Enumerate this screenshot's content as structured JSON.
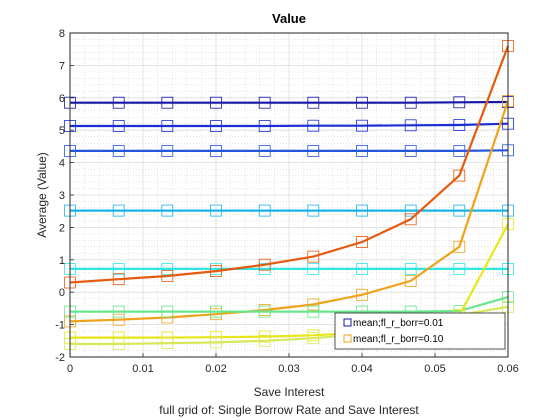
{
  "chart_data": {
    "type": "line",
    "title": "Value",
    "xlabel": "Save Interest",
    "ylabel": "Average (Value)",
    "caption": "full grid of: Single Borrow Rate and Save Interest",
    "xlim": [
      0,
      0.06
    ],
    "ylim": [
      -2,
      8
    ],
    "xticks": [
      "0",
      "0.01",
      "0.02",
      "0.03",
      "0.04",
      "0.05",
      "0.06"
    ],
    "yticks": [
      "-2",
      "-1",
      "0",
      "1",
      "2",
      "3",
      "4",
      "5",
      "6",
      "7",
      "8"
    ],
    "grid": true,
    "minor_grid": true,
    "legend_position": "bottom-right",
    "x": [
      0,
      0.00667,
      0.01333,
      0.02,
      0.02667,
      0.03333,
      0.04,
      0.04667,
      0.05333,
      0.06
    ],
    "series": [
      {
        "name": "",
        "color": "#1616a6",
        "values": [
          5.85,
          5.85,
          5.85,
          5.85,
          5.85,
          5.85,
          5.85,
          5.85,
          5.86,
          5.87
        ]
      },
      {
        "name": "",
        "color": "#1a2ed4",
        "values": [
          5.13,
          5.13,
          5.13,
          5.13,
          5.13,
          5.14,
          5.14,
          5.15,
          5.16,
          5.2
        ]
      },
      {
        "name": "",
        "color": "#2457d8",
        "values": [
          4.36,
          4.36,
          4.36,
          4.36,
          4.36,
          4.36,
          4.36,
          4.36,
          4.36,
          4.38
        ]
      },
      {
        "name": "",
        "color": "#1ab3e6",
        "values": [
          2.52,
          2.52,
          2.52,
          2.52,
          2.52,
          2.52,
          2.52,
          2.52,
          2.52,
          2.52
        ]
      },
      {
        "name": "",
        "color": "#2ee6e6",
        "values": [
          0.72,
          0.72,
          0.72,
          0.72,
          0.72,
          0.72,
          0.72,
          0.72,
          0.72,
          0.72
        ]
      },
      {
        "name": "",
        "color": "#e65a0d",
        "values": [
          0.3,
          0.4,
          0.5,
          0.65,
          0.85,
          1.1,
          1.55,
          2.25,
          3.6,
          7.6
        ]
      },
      {
        "name": "",
        "color": "#f0a21a",
        "values": [
          -0.9,
          -0.85,
          -0.78,
          -0.68,
          -0.55,
          -0.38,
          -0.08,
          0.35,
          1.4,
          5.9
        ]
      },
      {
        "name": "",
        "color": "#66e68c",
        "values": [
          -0.6,
          -0.6,
          -0.6,
          -0.6,
          -0.6,
          -0.6,
          -0.6,
          -0.6,
          -0.58,
          -0.15
        ]
      },
      {
        "name": "",
        "color": "#e8e619",
        "values": [
          -1.4,
          -1.4,
          -1.4,
          -1.39,
          -1.37,
          -1.33,
          -1.25,
          -1.1,
          -0.72,
          2.1
        ]
      },
      {
        "name": "",
        "color": "#d7e85a",
        "values": [
          -1.6,
          -1.6,
          -1.57,
          -1.55,
          -1.5,
          -1.42,
          -1.3,
          -1.1,
          -0.7,
          -0.45
        ]
      }
    ],
    "legend": [
      {
        "label": "mean;fl_r_borr=0.01",
        "color": "#1616a6"
      },
      {
        "label": "mean;fl_r_borr=0.10",
        "color": "#f0a21a"
      }
    ]
  }
}
